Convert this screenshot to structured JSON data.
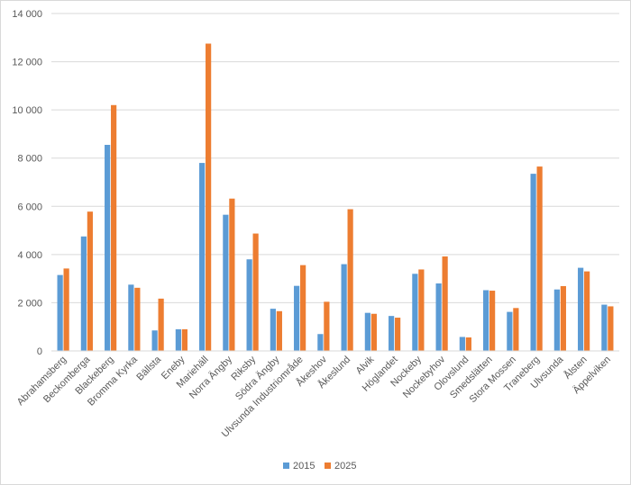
{
  "chart_data": {
    "type": "bar",
    "title": "",
    "xlabel": "",
    "ylabel": "",
    "ylim": [
      0,
      14000
    ],
    "y_ticks": [
      0,
      2000,
      4000,
      6000,
      8000,
      10000,
      12000,
      14000
    ],
    "y_tick_labels": [
      "0",
      "2 000",
      "4 000",
      "6 000",
      "8 000",
      "10 000",
      "12 000",
      "14 000"
    ],
    "grid": true,
    "legend_position": "bottom",
    "categories": [
      "Abrahamsberg",
      "Beckomberga",
      "Blackeberg",
      "Bromma Kyrka",
      "Bällsta",
      "Eneby",
      "Mariehäll",
      "Norra Ängby",
      "Riksby",
      "Södra Ängby",
      "Ulvsunda Industriområde",
      "Åkeshov",
      "Åkeslund",
      "Alvik",
      "Höglandet",
      "Nockeby",
      "Nockebyhov",
      "Olovslund",
      "Smedslätten",
      "Stora Mossen",
      "Traneberg",
      "Ulvsunda",
      "Ålsten",
      "Äppelviken"
    ],
    "series": [
      {
        "name": "2015",
        "color": "#5B9BD5",
        "values": [
          3150,
          4750,
          8550,
          2750,
          850,
          900,
          7800,
          5650,
          3800,
          1750,
          2700,
          700,
          3600,
          1580,
          1450,
          3200,
          2800,
          580,
          2520,
          1620,
          7350,
          2550,
          3450,
          1920
        ]
      },
      {
        "name": "2025",
        "color": "#ED7D31",
        "values": [
          3420,
          5780,
          10200,
          2620,
          2170,
          900,
          12750,
          6320,
          4870,
          1650,
          3560,
          2040,
          5880,
          1540,
          1380,
          3380,
          3920,
          560,
          2500,
          1780,
          7650,
          2690,
          3300,
          1850
        ]
      }
    ]
  }
}
